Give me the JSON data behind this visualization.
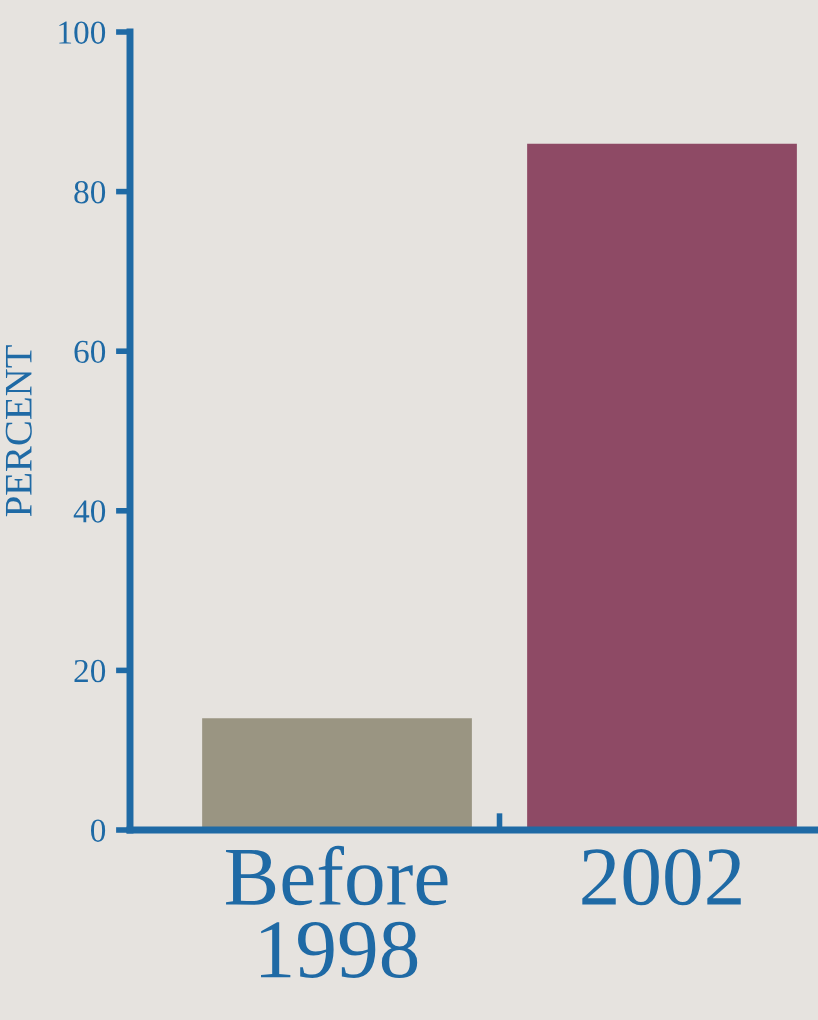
{
  "chart_data": {
    "type": "bar",
    "ylabel": "PERCENT",
    "categories": [
      "Before\n1998",
      "2002"
    ],
    "values": [
      14,
      86
    ],
    "colors": [
      "#9a9582",
      "#8e4a65"
    ],
    "ylim": [
      0,
      100
    ],
    "yticks": [
      0,
      20,
      40,
      60,
      80,
      100
    ],
    "grid": false,
    "legend": false
  }
}
